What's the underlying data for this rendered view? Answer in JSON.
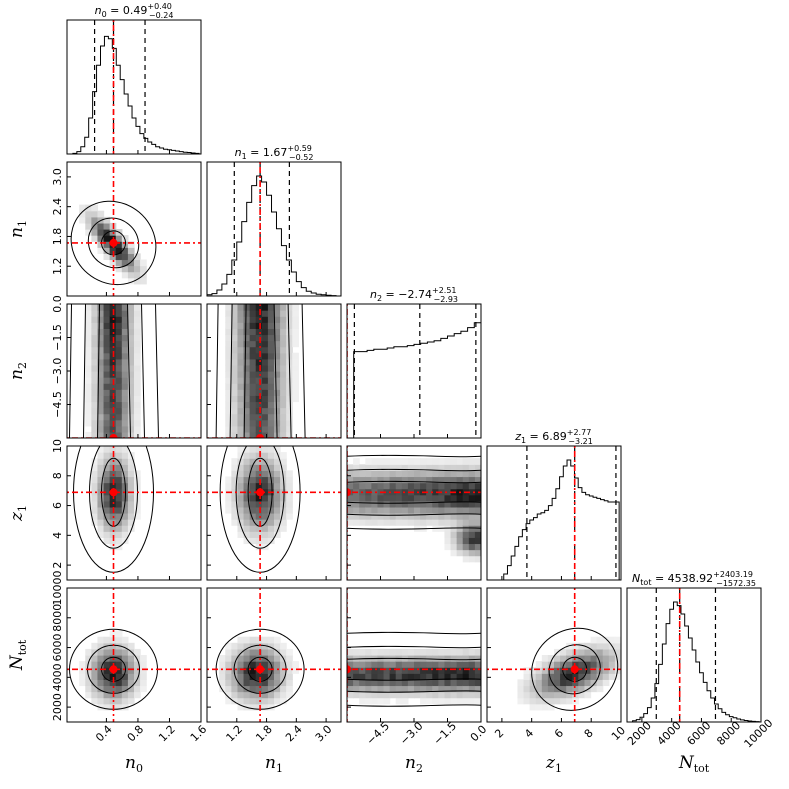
{
  "chart_data": {
    "type": "corner",
    "parameters": [
      {
        "key": "n0",
        "label": "n",
        "sub": "0",
        "range": [
          -0.1,
          1.6
        ],
        "ticks": [
          0.4,
          0.8,
          1.2,
          1.6
        ],
        "tick_labels": [
          "0.4",
          "0.8",
          "1.2",
          "1.6"
        ],
        "truth": 0.49,
        "quantiles": [
          0.25,
          0.49,
          0.89
        ],
        "title": {
          "name": "n",
          "sub": "0",
          "median": "0.49",
          "plus": "+0.40",
          "minus": "−0.24"
        },
        "hist": {
          "bins": [
            -0.05,
            0.0,
            0.05,
            0.1,
            0.15,
            0.2,
            0.25,
            0.3,
            0.35,
            0.4,
            0.45,
            0.5,
            0.55,
            0.6,
            0.65,
            0.7,
            0.75,
            0.8,
            0.85,
            0.9,
            0.95,
            1.0,
            1.05,
            1.1,
            1.15,
            1.2,
            1.25,
            1.3,
            1.35,
            1.4,
            1.45,
            1.5,
            1.55
          ],
          "counts": [
            0.0,
            0.005,
            0.02,
            0.06,
            0.14,
            0.3,
            0.52,
            0.74,
            0.9,
            0.98,
            0.96,
            0.88,
            0.74,
            0.62,
            0.5,
            0.4,
            0.3,
            0.23,
            0.17,
            0.13,
            0.1,
            0.08,
            0.06,
            0.05,
            0.04,
            0.035,
            0.03,
            0.025,
            0.02,
            0.015,
            0.012,
            0.008,
            0.005
          ]
        }
      },
      {
        "key": "n1",
        "label": "n",
        "sub": "1",
        "range": [
          0.6,
          3.3
        ],
        "ticks": [
          1.2,
          1.8,
          2.4,
          3.0
        ],
        "tick_labels": [
          "1.2",
          "1.8",
          "2.4",
          "3.0"
        ],
        "truth": 1.67,
        "quantiles": [
          1.15,
          1.67,
          2.26
        ],
        "title": {
          "name": "n",
          "sub": "1",
          "median": "1.67",
          "plus": "+0.59",
          "minus": "−0.52"
        },
        "hist": {
          "bins": [
            0.65,
            0.75,
            0.85,
            0.95,
            1.05,
            1.15,
            1.25,
            1.35,
            1.45,
            1.55,
            1.65,
            1.75,
            1.85,
            1.95,
            2.05,
            2.15,
            2.25,
            2.35,
            2.45,
            2.55,
            2.65,
            2.75,
            2.85,
            2.95,
            3.05,
            3.15
          ],
          "counts": [
            0.01,
            0.02,
            0.05,
            0.1,
            0.18,
            0.3,
            0.45,
            0.62,
            0.78,
            0.92,
            1.0,
            0.95,
            0.84,
            0.7,
            0.56,
            0.42,
            0.3,
            0.2,
            0.12,
            0.07,
            0.04,
            0.025,
            0.015,
            0.01,
            0.006,
            0.003
          ]
        }
      },
      {
        "key": "n2",
        "label": "n",
        "sub": "2",
        "range": [
          -6.0,
          0.0
        ],
        "ticks": [
          -4.5,
          -3.0,
          -1.5,
          0.0
        ],
        "tick_labels": [
          "−4.5",
          "−3.0",
          "−1.5",
          "0.0"
        ],
        "truth": -6.0,
        "quantiles": [
          -5.67,
          -2.74,
          -0.23
        ],
        "title": {
          "name": "n",
          "sub": "2",
          "median": "−2.74",
          "plus": "+2.51",
          "minus": "−2.93"
        },
        "hist": {
          "bins": [
            -5.85,
            -5.55,
            -5.25,
            -4.95,
            -4.65,
            -4.35,
            -4.05,
            -3.75,
            -3.45,
            -3.15,
            -2.85,
            -2.55,
            -2.25,
            -1.95,
            -1.65,
            -1.35,
            -1.05,
            -0.75,
            -0.45,
            -0.15
          ],
          "counts": [
            0.0,
            0.72,
            0.72,
            0.73,
            0.74,
            0.74,
            0.75,
            0.76,
            0.76,
            0.77,
            0.78,
            0.79,
            0.8,
            0.81,
            0.83,
            0.85,
            0.87,
            0.89,
            0.92,
            0.96
          ]
        }
      },
      {
        "key": "z1",
        "label": "z",
        "sub": "1",
        "range": [
          1.0,
          10.0
        ],
        "ticks": [
          2,
          4,
          6,
          8,
          10
        ],
        "tick_labels": [
          "2",
          "4",
          "6",
          "8",
          "10"
        ],
        "truth": 6.89,
        "quantiles": [
          3.68,
          6.89,
          9.66
        ],
        "title": {
          "name": "z",
          "sub": "1",
          "median": "6.89",
          "plus": "+2.77",
          "minus": "−3.21"
        },
        "hist": {
          "bins": [
            2.25,
            2.5,
            2.75,
            3.0,
            3.25,
            3.5,
            3.75,
            4.0,
            4.25,
            4.5,
            4.75,
            5.0,
            5.25,
            5.5,
            5.75,
            6.0,
            6.25,
            6.5,
            6.75,
            7.0,
            7.25,
            7.5,
            7.75,
            8.0,
            8.25,
            8.5,
            8.75,
            9.0,
            9.25,
            9.5,
            9.75
          ],
          "counts": [
            0.05,
            0.12,
            0.2,
            0.28,
            0.36,
            0.42,
            0.47,
            0.5,
            0.52,
            0.55,
            0.56,
            0.58,
            0.62,
            0.68,
            0.76,
            0.86,
            0.95,
            1.0,
            0.95,
            0.85,
            0.77,
            0.73,
            0.71,
            0.7,
            0.69,
            0.68,
            0.67,
            0.66,
            0.65,
            0.65,
            0.65
          ]
        }
      },
      {
        "key": "Ntot",
        "label": "N",
        "sub": "tot",
        "range": [
          1000,
          10000
        ],
        "ticks": [
          2000,
          4000,
          6000,
          8000,
          10000
        ],
        "tick_labels": [
          "2000",
          "4000",
          "6000",
          "8000",
          "10000"
        ],
        "truth": 4538.92,
        "quantiles": [
          2966.57,
          4538.92,
          6942.11
        ],
        "title": {
          "name": "N",
          "sub": "tot",
          "median": "4538.92",
          "plus": "+2403.19",
          "minus": "−1572.35"
        },
        "hist": {
          "bins": [
            1500,
            1750,
            2000,
            2250,
            2500,
            2750,
            3000,
            3250,
            3500,
            3750,
            4000,
            4250,
            4500,
            4750,
            5000,
            5250,
            5500,
            5750,
            6000,
            6250,
            6500,
            6750,
            7000,
            7250,
            7500,
            7750,
            8000,
            8250,
            8500,
            8750,
            9000,
            9250,
            9500,
            9750
          ],
          "counts": [
            0.01,
            0.02,
            0.04,
            0.07,
            0.12,
            0.2,
            0.32,
            0.48,
            0.65,
            0.82,
            0.94,
            1.0,
            0.97,
            0.9,
            0.8,
            0.7,
            0.6,
            0.5,
            0.41,
            0.33,
            0.26,
            0.2,
            0.15,
            0.11,
            0.08,
            0.06,
            0.045,
            0.035,
            0.025,
            0.018,
            0.012,
            0.008,
            0.005,
            0.003
          ]
        }
      }
    ],
    "y_tick_labels": {
      "n1": [
        "1.2",
        "1.8",
        "2.4",
        "3.0"
      ],
      "n2": [
        "−4.5",
        "−3.0",
        "−1.5",
        "0.0"
      ],
      "z1": [
        "2",
        "4",
        "6",
        "8",
        "10"
      ],
      "Ntot": [
        "2000",
        "4000",
        "6000",
        "8000",
        "10000"
      ]
    },
    "marker_color": "#ff0000",
    "contour_color": "#000000",
    "density_colormap": "greys"
  }
}
